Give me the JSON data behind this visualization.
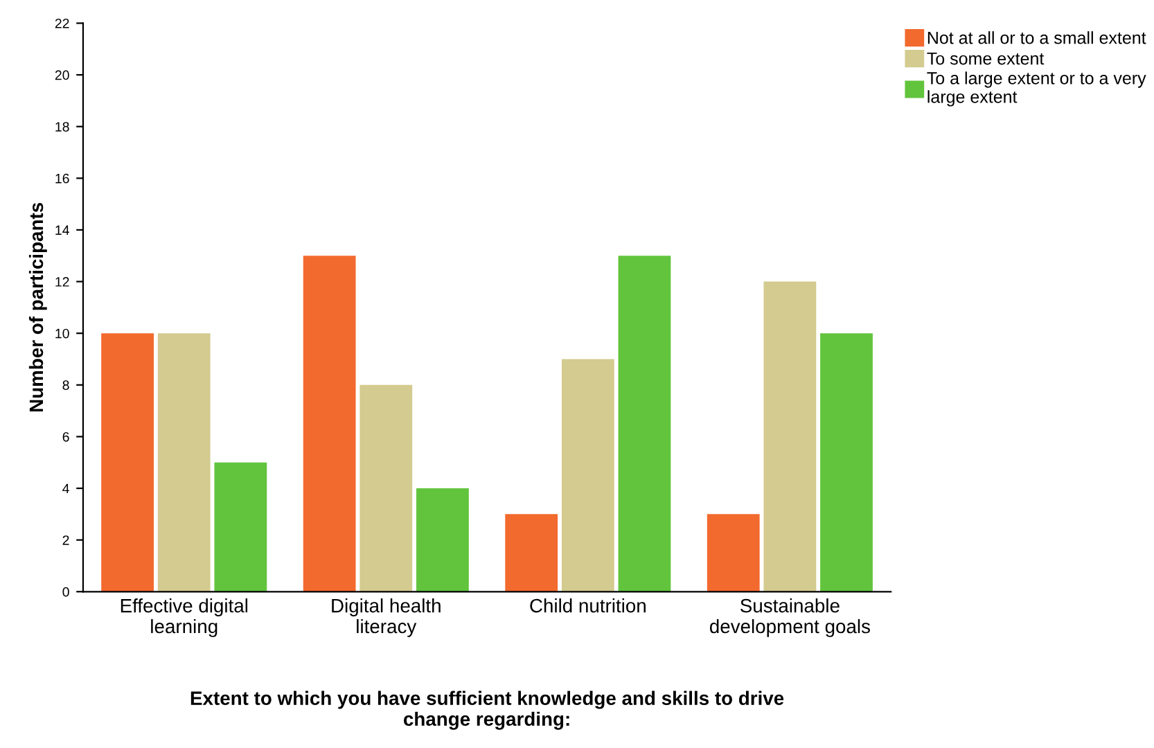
{
  "chart_data": {
    "type": "bar",
    "xlabel": "Extent to which you have sufficient knowledge and skills to drive change regarding:",
    "ylabel": "Number of participants",
    "categories": [
      "Effective digital learning",
      "Digital health literacy",
      "Child nutrition",
      "Sustainable development goals"
    ],
    "series": [
      {
        "name": "Not at all or to a small extent",
        "color": "#f26a2e",
        "values": [
          10,
          13,
          3,
          3
        ]
      },
      {
        "name": "To some extent",
        "color": "#d3cb8f",
        "values": [
          10,
          8,
          9,
          12
        ]
      },
      {
        "name": "To a large extent or to a very large extent",
        "color": "#62c43d",
        "values": [
          5,
          4,
          13,
          10
        ]
      }
    ],
    "ylim": [
      0,
      22
    ],
    "yticks": [
      0,
      2,
      4,
      6,
      8,
      10,
      12,
      14,
      16,
      18,
      20,
      22
    ],
    "grid": false,
    "legend": "top right"
  }
}
